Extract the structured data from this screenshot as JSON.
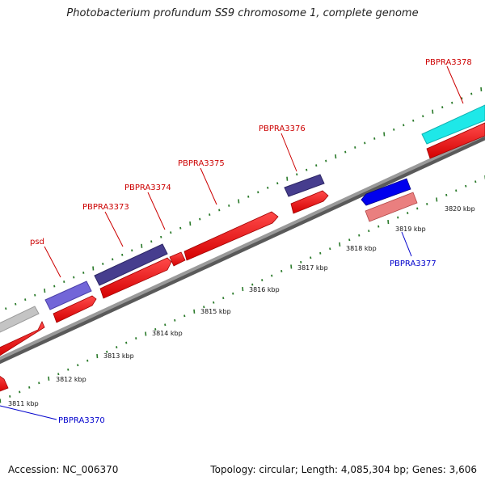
{
  "title": "Photobacterium profundum SS9 chromosome 1, complete genome",
  "footer": {
    "accession": "Accession: NC_006370",
    "summary": "Topology: circular; Length: 4,085,304 bp; Genes: 3,606"
  },
  "colors": {
    "backbone": "#7a7a7a",
    "tick": "#2a7a2a",
    "forward_label": "#cc0000",
    "reverse_label": "#0000cc",
    "cds_red": "#ff0000",
    "gene_navy": "#3d3585",
    "gene_violet": "#6a5fd0",
    "gene_gray": "#c0c0c0",
    "gene_cyan": "#19e6e6",
    "gene_blue": "#0000ee",
    "gene_pink": "#e87878"
  },
  "axis": {
    "kbp_labels": [
      "3811 kbp",
      "3812 kbp",
      "3813 kbp",
      "3814 kbp",
      "3815 kbp",
      "3816 kbp",
      "3817 kbp",
      "3818 kbp",
      "3819 kbp",
      "3820 kbp"
    ]
  },
  "gene_labels": [
    {
      "text": "psd",
      "strand": "forward"
    },
    {
      "text": "PBPRA3373",
      "strand": "forward"
    },
    {
      "text": "PBPRA3374",
      "strand": "forward"
    },
    {
      "text": "PBPRA3375",
      "strand": "forward"
    },
    {
      "text": "PBPRA3376",
      "strand": "forward"
    },
    {
      "text": "PBPRA3378",
      "strand": "forward"
    },
    {
      "text": "PBPRA3377",
      "strand": "reverse"
    },
    {
      "text": "PBPRA3370",
      "strand": "reverse"
    }
  ]
}
